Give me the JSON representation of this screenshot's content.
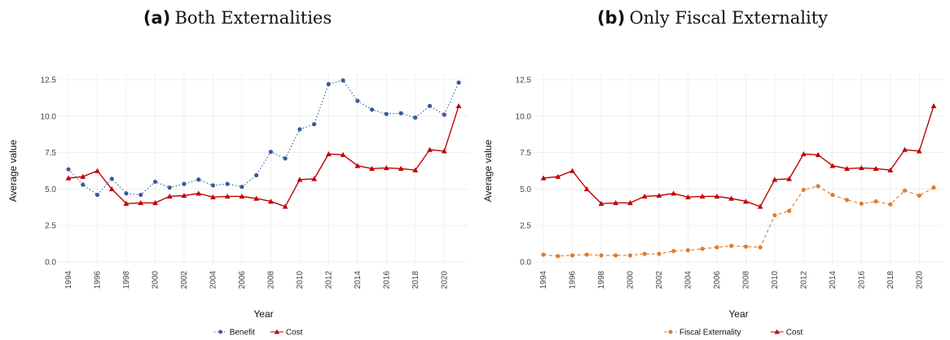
{
  "chart_data": [
    {
      "type": "line",
      "panel_letter": "(a)",
      "title": "Both Externalities",
      "xlabel": "Year",
      "ylabel": "Average value",
      "ylim": [
        0,
        12.5
      ],
      "yticks": [
        0.0,
        2.5,
        5.0,
        7.5,
        10.0,
        12.5
      ],
      "ytick_labels": [
        "0.0",
        "2.5",
        "5.0",
        "7.5",
        "10.0",
        "12.5"
      ],
      "xlim": [
        1994,
        2021
      ],
      "xticks": [
        1994,
        1996,
        1998,
        2000,
        2002,
        2004,
        2006,
        2008,
        2010,
        2012,
        2014,
        2016,
        2018,
        2020
      ],
      "xtick_labels": [
        "1994",
        "1996",
        "1998",
        "2000",
        "2002",
        "2004",
        "2006",
        "2008",
        "2010",
        "2012",
        "2014",
        "2016",
        "2018",
        "2020"
      ],
      "grid": true,
      "legend_position": "bottom",
      "x": [
        1994,
        1995,
        1996,
        1997,
        1998,
        1999,
        2000,
        2001,
        2002,
        2003,
        2004,
        2005,
        2006,
        2007,
        2008,
        2009,
        2010,
        2011,
        2012,
        2013,
        2014,
        2015,
        2016,
        2017,
        2018,
        2019,
        2020,
        2021
      ],
      "series": [
        {
          "name": "Benefit",
          "color": "#3a5a9c",
          "style": "dotted",
          "marker": "circle",
          "values": [
            6.35,
            5.3,
            4.6,
            5.7,
            4.7,
            4.6,
            5.5,
            5.1,
            5.35,
            5.65,
            5.25,
            5.35,
            5.15,
            5.95,
            7.55,
            7.1,
            9.1,
            9.45,
            12.2,
            12.45,
            11.05,
            10.45,
            10.15,
            10.2,
            9.9,
            10.7,
            10.1,
            12.3
          ]
        },
        {
          "name": "Cost",
          "color": "#c00000",
          "style": "solid",
          "marker": "triangle",
          "values": [
            5.75,
            5.85,
            6.25,
            5.0,
            4.0,
            4.05,
            4.05,
            4.5,
            4.55,
            4.7,
            4.45,
            4.5,
            4.5,
            4.35,
            4.15,
            3.8,
            5.65,
            5.7,
            7.4,
            7.35,
            6.6,
            6.4,
            6.45,
            6.4,
            6.3,
            7.7,
            7.6,
            10.7
          ]
        }
      ]
    },
    {
      "type": "line",
      "panel_letter": "(b)",
      "title": "Only Fiscal Externality",
      "xlabel": "Year",
      "ylabel": "Average value",
      "ylim": [
        0,
        12.5
      ],
      "yticks": [
        0.0,
        2.5,
        5.0,
        7.5,
        10.0,
        12.5
      ],
      "ytick_labels": [
        "0.0",
        "2.5",
        "5.0",
        "7.5",
        "10.0",
        "12.5"
      ],
      "xlim": [
        1994,
        2021
      ],
      "xticks": [
        1994,
        1996,
        1998,
        2000,
        2002,
        2004,
        2006,
        2008,
        2010,
        2012,
        2014,
        2016,
        2018,
        2020
      ],
      "xtick_labels": [
        "1994",
        "1996",
        "1998",
        "2000",
        "2002",
        "2004",
        "2006",
        "2008",
        "2010",
        "2012",
        "2014",
        "2016",
        "2018",
        "2020"
      ],
      "grid": true,
      "legend_position": "bottom",
      "x": [
        1994,
        1995,
        1996,
        1997,
        1998,
        1999,
        2000,
        2001,
        2002,
        2003,
        2004,
        2005,
        2006,
        2007,
        2008,
        2009,
        2010,
        2011,
        2012,
        2013,
        2014,
        2015,
        2016,
        2017,
        2018,
        2019,
        2020,
        2021
      ],
      "series": [
        {
          "name": "Fiscal Externality",
          "color": "#e07b2e",
          "style": "dashed",
          "marker": "circle",
          "values": [
            0.5,
            0.4,
            0.45,
            0.5,
            0.45,
            0.45,
            0.45,
            0.55,
            0.55,
            0.75,
            0.8,
            0.9,
            1.0,
            1.1,
            1.05,
            1.0,
            3.2,
            3.5,
            4.95,
            5.2,
            4.6,
            4.25,
            4.0,
            4.15,
            3.95,
            4.9,
            4.55,
            5.1
          ]
        },
        {
          "name": "Cost",
          "color": "#c00000",
          "style": "solid",
          "marker": "triangle",
          "values": [
            5.75,
            5.85,
            6.25,
            5.0,
            4.0,
            4.05,
            4.05,
            4.5,
            4.55,
            4.7,
            4.45,
            4.5,
            4.5,
            4.35,
            4.15,
            3.8,
            5.65,
            5.7,
            7.4,
            7.35,
            6.6,
            6.4,
            6.45,
            6.4,
            6.3,
            7.7,
            7.6,
            10.7
          ]
        }
      ]
    }
  ]
}
